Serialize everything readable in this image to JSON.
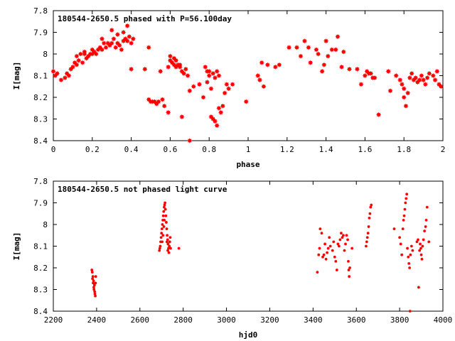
{
  "chart_data": [
    {
      "type": "scatter",
      "title": "180544-2650.5 phased with P=56.100day",
      "xlabel": "phase",
      "ylabel": "I[mag]",
      "xlim": [
        0,
        2
      ],
      "ylim": [
        7.8,
        8.4
      ],
      "y_inverted": true,
      "grid": false,
      "marker": "filled star",
      "color": "#ff0000",
      "x_ticks": [
        "0",
        "0.2",
        "0.4",
        "0.6",
        "0.8",
        "1",
        "1.2",
        "1.4",
        "1.6",
        "1.8",
        "2"
      ],
      "y_ticks": [
        "7.8",
        "7.9",
        "8",
        "8.1",
        "8.2",
        "8.3",
        "8.4"
      ],
      "points": [
        [
          0.0,
          8.08
        ],
        [
          0.01,
          8.1
        ],
        [
          0.02,
          8.09
        ],
        [
          0.04,
          8.12
        ],
        [
          0.06,
          8.11
        ],
        [
          0.07,
          8.09
        ],
        [
          0.08,
          8.1
        ],
        [
          0.09,
          8.07
        ],
        [
          0.1,
          8.06
        ],
        [
          0.11,
          8.04
        ],
        [
          0.12,
          8.05
        ],
        [
          0.12,
          8.01
        ],
        [
          0.13,
          8.03
        ],
        [
          0.14,
          8.0
        ],
        [
          0.15,
          8.04
        ],
        [
          0.16,
          8.0
        ],
        [
          0.16,
          7.99
        ],
        [
          0.17,
          8.02
        ],
        [
          0.18,
          8.01
        ],
        [
          0.19,
          8.0
        ],
        [
          0.2,
          8.0
        ],
        [
          0.2,
          7.98
        ],
        [
          0.21,
          7.99
        ],
        [
          0.22,
          8.0
        ],
        [
          0.23,
          7.98
        ],
        [
          0.24,
          7.97
        ],
        [
          0.25,
          7.98
        ],
        [
          0.25,
          7.93
        ],
        [
          0.26,
          7.95
        ],
        [
          0.27,
          7.97
        ],
        [
          0.28,
          7.95
        ],
        [
          0.29,
          7.96
        ],
        [
          0.3,
          7.95
        ],
        [
          0.3,
          7.89
        ],
        [
          0.31,
          7.93
        ],
        [
          0.32,
          7.97
        ],
        [
          0.33,
          7.91
        ],
        [
          0.33,
          7.95
        ],
        [
          0.34,
          7.96
        ],
        [
          0.35,
          7.98
        ],
        [
          0.36,
          7.94
        ],
        [
          0.36,
          7.9
        ],
        [
          0.37,
          7.93
        ],
        [
          0.38,
          7.94
        ],
        [
          0.38,
          7.87
        ],
        [
          0.39,
          7.92
        ],
        [
          0.4,
          7.95
        ],
        [
          0.41,
          7.93
        ],
        [
          0.4,
          8.07
        ],
        [
          0.47,
          8.07
        ],
        [
          0.49,
          7.97
        ],
        [
          0.49,
          8.21
        ],
        [
          0.5,
          8.22
        ],
        [
          0.51,
          8.22
        ],
        [
          0.52,
          8.22
        ],
        [
          0.53,
          8.23
        ],
        [
          0.54,
          8.22
        ],
        [
          0.55,
          8.08
        ],
        [
          0.56,
          8.21
        ],
        [
          0.57,
          8.24
        ],
        [
          0.59,
          8.06
        ],
        [
          0.59,
          8.27
        ],
        [
          0.6,
          8.01
        ],
        [
          0.6,
          8.03
        ],
        [
          0.61,
          8.04
        ],
        [
          0.62,
          8.02
        ],
        [
          0.62,
          8.05
        ],
        [
          0.63,
          8.03
        ],
        [
          0.63,
          8.06
        ],
        [
          0.64,
          8.05
        ],
        [
          0.65,
          8.05
        ],
        [
          0.65,
          8.06
        ],
        [
          0.66,
          8.08
        ],
        [
          0.66,
          8.29
        ],
        [
          0.67,
          8.09
        ],
        [
          0.68,
          8.07
        ],
        [
          0.69,
          8.1
        ],
        [
          0.7,
          8.4
        ],
        [
          0.7,
          8.17
        ],
        [
          0.72,
          8.15
        ],
        [
          0.75,
          8.14
        ],
        [
          0.77,
          8.2
        ],
        [
          0.78,
          8.06
        ],
        [
          0.79,
          8.08
        ],
        [
          0.79,
          8.13
        ],
        [
          0.8,
          8.1
        ],
        [
          0.8,
          8.08
        ],
        [
          0.81,
          8.16
        ],
        [
          0.81,
          8.29
        ],
        [
          0.82,
          8.3
        ],
        [
          0.82,
          8.09
        ],
        [
          0.83,
          8.31
        ],
        [
          0.83,
          8.11
        ],
        [
          0.84,
          8.08
        ],
        [
          0.84,
          8.33
        ],
        [
          0.85,
          8.1
        ],
        [
          0.85,
          8.25
        ],
        [
          0.86,
          8.27
        ],
        [
          0.87,
          8.24
        ],
        [
          0.88,
          8.18
        ],
        [
          0.89,
          8.14
        ],
        [
          0.9,
          8.16
        ],
        [
          0.92,
          8.14
        ],
        [
          0.99,
          8.22
        ],
        [
          1.05,
          8.1
        ],
        [
          1.06,
          8.12
        ],
        [
          1.07,
          8.04
        ],
        [
          1.08,
          8.15
        ],
        [
          1.1,
          8.05
        ],
        [
          1.14,
          8.06
        ],
        [
          1.16,
          8.05
        ],
        [
          1.21,
          7.97
        ],
        [
          1.25,
          7.97
        ],
        [
          1.27,
          8.01
        ],
        [
          1.29,
          7.94
        ],
        [
          1.31,
          7.97
        ],
        [
          1.32,
          8.04
        ],
        [
          1.35,
          7.98
        ],
        [
          1.36,
          8.0
        ],
        [
          1.38,
          8.08
        ],
        [
          1.39,
          8.05
        ],
        [
          1.4,
          7.94
        ],
        [
          1.41,
          8.01
        ],
        [
          1.43,
          7.98
        ],
        [
          1.45,
          7.98
        ],
        [
          1.46,
          7.92
        ],
        [
          1.48,
          8.06
        ],
        [
          1.49,
          7.99
        ],
        [
          1.52,
          8.07
        ],
        [
          1.56,
          8.07
        ],
        [
          1.58,
          8.14
        ],
        [
          1.6,
          8.1
        ],
        [
          1.61,
          8.08
        ],
        [
          1.62,
          8.09
        ],
        [
          1.63,
          8.09
        ],
        [
          1.64,
          8.11
        ],
        [
          1.65,
          8.11
        ],
        [
          1.67,
          8.28
        ],
        [
          1.72,
          8.08
        ],
        [
          1.73,
          8.17
        ],
        [
          1.76,
          8.1
        ],
        [
          1.78,
          8.12
        ],
        [
          1.79,
          8.14
        ],
        [
          1.8,
          8.16
        ],
        [
          1.8,
          8.2
        ],
        [
          1.81,
          8.24
        ],
        [
          1.82,
          8.18
        ],
        [
          1.83,
          8.11
        ],
        [
          1.84,
          8.09
        ],
        [
          1.85,
          8.12
        ],
        [
          1.86,
          8.11
        ],
        [
          1.87,
          8.13
        ],
        [
          1.88,
          8.12
        ],
        [
          1.89,
          8.1
        ],
        [
          1.9,
          8.12
        ],
        [
          1.91,
          8.14
        ],
        [
          1.92,
          8.11
        ],
        [
          1.93,
          8.09
        ],
        [
          1.95,
          8.1
        ],
        [
          1.96,
          8.12
        ],
        [
          1.97,
          8.08
        ],
        [
          1.98,
          8.14
        ],
        [
          1.99,
          8.15
        ]
      ]
    },
    {
      "type": "scatter",
      "title": "180544-2650.5 not phased light curve",
      "xlabel": "hjd0",
      "ylabel": "I[mag]",
      "xlim": [
        2200,
        4000
      ],
      "ylim": [
        7.8,
        8.4
      ],
      "y_inverted": true,
      "grid": false,
      "marker": "filled dot",
      "color": "#ff0000",
      "x_ticks": [
        "2200",
        "2400",
        "2600",
        "2800",
        "3000",
        "3200",
        "3400",
        "3600",
        "3800",
        "4000"
      ],
      "y_ticks": [
        "7.8",
        "7.9",
        "8",
        "8.1",
        "8.2",
        "8.3",
        "8.4"
      ],
      "points": [
        [
          2378,
          8.21
        ],
        [
          2380,
          8.22
        ],
        [
          2381,
          8.25
        ],
        [
          2383,
          8.24
        ],
        [
          2384,
          8.27
        ],
        [
          2386,
          8.26
        ],
        [
          2387,
          8.29
        ],
        [
          2388,
          8.3
        ],
        [
          2390,
          8.28
        ],
        [
          2391,
          8.31
        ],
        [
          2392,
          8.32
        ],
        [
          2394,
          8.33
        ],
        [
          2395,
          8.27
        ],
        [
          2396,
          8.24
        ],
        [
          2690,
          8.12
        ],
        [
          2692,
          8.11
        ],
        [
          2694,
          8.1
        ],
        [
          2696,
          8.08
        ],
        [
          2698,
          8.06
        ],
        [
          2700,
          8.04
        ],
        [
          2702,
          8.02
        ],
        [
          2704,
          8.0
        ],
        [
          2706,
          7.98
        ],
        [
          2708,
          7.96
        ],
        [
          2710,
          7.94
        ],
        [
          2712,
          7.92
        ],
        [
          2714,
          7.91
        ],
        [
          2716,
          7.9
        ],
        [
          2718,
          7.93
        ],
        [
          2720,
          7.96
        ],
        [
          2722,
          7.99
        ],
        [
          2724,
          8.02
        ],
        [
          2726,
          8.05
        ],
        [
          2728,
          8.07
        ],
        [
          2730,
          8.09
        ],
        [
          2732,
          8.11
        ],
        [
          2734,
          8.13
        ],
        [
          2736,
          8.1
        ],
        [
          2738,
          8.08
        ],
        [
          2740,
          8.06
        ],
        [
          2742,
          8.11
        ],
        [
          2703,
          8.08
        ],
        [
          2707,
          8.05
        ],
        [
          2711,
          8.01
        ],
        [
          2713,
          7.98
        ],
        [
          2725,
          8.08
        ],
        [
          2729,
          8.12
        ],
        [
          2780,
          8.11
        ],
        [
          3420,
          8.22
        ],
        [
          3426,
          8.14
        ],
        [
          3430,
          8.11
        ],
        [
          3433,
          8.02
        ],
        [
          3440,
          8.04
        ],
        [
          3445,
          8.15
        ],
        [
          3450,
          8.14
        ],
        [
          3455,
          8.09
        ],
        [
          3460,
          8.16
        ],
        [
          3465,
          8.13
        ],
        [
          3470,
          8.11
        ],
        [
          3475,
          8.06
        ],
        [
          3480,
          8.1
        ],
        [
          3490,
          8.12
        ],
        [
          3495,
          8.08
        ],
        [
          3500,
          8.15
        ],
        [
          3505,
          8.17
        ],
        [
          3510,
          8.21
        ],
        [
          3515,
          8.09
        ],
        [
          3520,
          8.1
        ],
        [
          3525,
          8.07
        ],
        [
          3530,
          8.04
        ],
        [
          3535,
          8.06
        ],
        [
          3540,
          8.05
        ],
        [
          3545,
          8.12
        ],
        [
          3550,
          8.09
        ],
        [
          3555,
          8.05
        ],
        [
          3560,
          8.07
        ],
        [
          3563,
          8.17
        ],
        [
          3565,
          8.21
        ],
        [
          3567,
          8.24
        ],
        [
          3570,
          8.2
        ],
        [
          3580,
          8.11
        ],
        [
          3645,
          8.1
        ],
        [
          3648,
          8.08
        ],
        [
          3651,
          8.06
        ],
        [
          3654,
          8.04
        ],
        [
          3657,
          8.01
        ],
        [
          3660,
          7.97
        ],
        [
          3663,
          7.95
        ],
        [
          3666,
          7.92
        ],
        [
          3669,
          7.91
        ],
        [
          3775,
          8.02
        ],
        [
          3800,
          8.06
        ],
        [
          3805,
          8.09
        ],
        [
          3810,
          8.14
        ],
        [
          3815,
          8.02
        ],
        [
          3818,
          7.98
        ],
        [
          3821,
          7.96
        ],
        [
          3824,
          7.93
        ],
        [
          3827,
          7.9
        ],
        [
          3830,
          7.88
        ],
        [
          3833,
          7.86
        ],
        [
          3836,
          8.11
        ],
        [
          3840,
          8.15
        ],
        [
          3843,
          8.18
        ],
        [
          3846,
          8.2
        ],
        [
          3848,
          8.4
        ],
        [
          3850,
          8.14
        ],
        [
          3855,
          8.1
        ],
        [
          3860,
          8.12
        ],
        [
          3880,
          8.08
        ],
        [
          3885,
          8.07
        ],
        [
          3888,
          8.29
        ],
        [
          3892,
          8.12
        ],
        [
          3895,
          8.09
        ],
        [
          3898,
          8.11
        ],
        [
          3900,
          8.14
        ],
        [
          3903,
          8.16
        ],
        [
          3906,
          8.1
        ],
        [
          3910,
          8.07
        ],
        [
          3915,
          8.03
        ],
        [
          3920,
          8.01
        ],
        [
          3923,
          7.98
        ],
        [
          3927,
          7.92
        ],
        [
          3935,
          8.08
        ]
      ]
    }
  ]
}
